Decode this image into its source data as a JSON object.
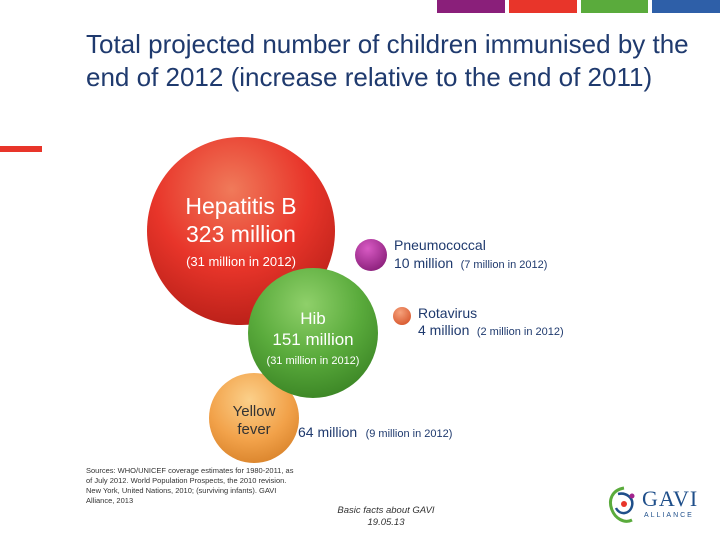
{
  "header": {
    "bar_colors": [
      "#8a1f7a",
      "#e8352a",
      "#5aab3c",
      "#2e5fa8"
    ]
  },
  "title": "Total projected number of children immunised by the end of 2012 (increase relative to the end of 2011)",
  "chart_data": {
    "type": "bubble",
    "unit": "million",
    "series": [
      {
        "key": "hepb",
        "name": "Hepatitis B",
        "value_label": "323 million",
        "value": 323,
        "increase_label": "(31 million in 2012)",
        "increase": 31,
        "color": "#e8352a"
      },
      {
        "key": "hib",
        "name": "Hib",
        "value_label": "151 million",
        "value": 151,
        "increase_label": "(31 million in 2012)",
        "increase": 31,
        "color": "#5aab3c"
      },
      {
        "key": "pneumo",
        "name": "Pneumococcal",
        "value_label": "10 million",
        "value": 10,
        "increase_label": "(7 million in 2012)",
        "increase": 7,
        "color": "#a3238e"
      },
      {
        "key": "rota",
        "name": "Rotavirus",
        "value_label": "4 million",
        "value": 4,
        "increase_label": "(2 million in 2012)",
        "increase": 2,
        "color": "#e8704a"
      },
      {
        "key": "yf",
        "name_lines": [
          "Yellow",
          "fever"
        ],
        "value_label": "64 million",
        "value": 64,
        "increase_label": "(9 million in 2012)",
        "increase": 9,
        "color": "#f2a24a"
      }
    ]
  },
  "sources": "Sources: WHO/UNICEF coverage estimates for 1980-2011, as of July 2012. World Population Prospects, the 2010 revision. New York, United Nations, 2010; (surviving infants). GAVI Alliance, 2013",
  "footer": {
    "line1": "Basic facts about GAVI",
    "line2": "19.05.13"
  },
  "logo": {
    "name": "GAVI",
    "sub": "ALLIANCE"
  }
}
